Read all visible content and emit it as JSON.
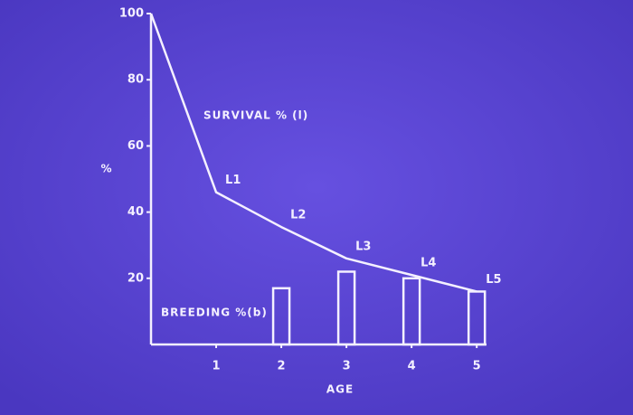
{
  "chart_data": {
    "type": "line",
    "x_label": "AGE",
    "y_label": "%",
    "x": [
      0,
      1,
      2,
      3,
      4,
      5
    ],
    "xlim": [
      0,
      5.15
    ],
    "xticks": [
      1,
      2,
      3,
      4,
      5
    ],
    "ylim": [
      0,
      100
    ],
    "yticks": [
      20,
      40,
      60,
      80,
      100
    ],
    "grid": false,
    "background": "#5b44d4",
    "series": [
      {
        "name": "SURVIVAL % (l)",
        "type": "line",
        "color": "#f4f0ff",
        "values": [
          100,
          46,
          35.5,
          26,
          21,
          16
        ],
        "point_labels": [
          null,
          "L1",
          "L2",
          "L3",
          "L4",
          "L5"
        ]
      },
      {
        "name": "BREEDING %(b)",
        "type": "bar",
        "color": "#f4f0ff",
        "values": [
          null,
          null,
          17,
          22,
          20,
          16
        ]
      }
    ]
  }
}
